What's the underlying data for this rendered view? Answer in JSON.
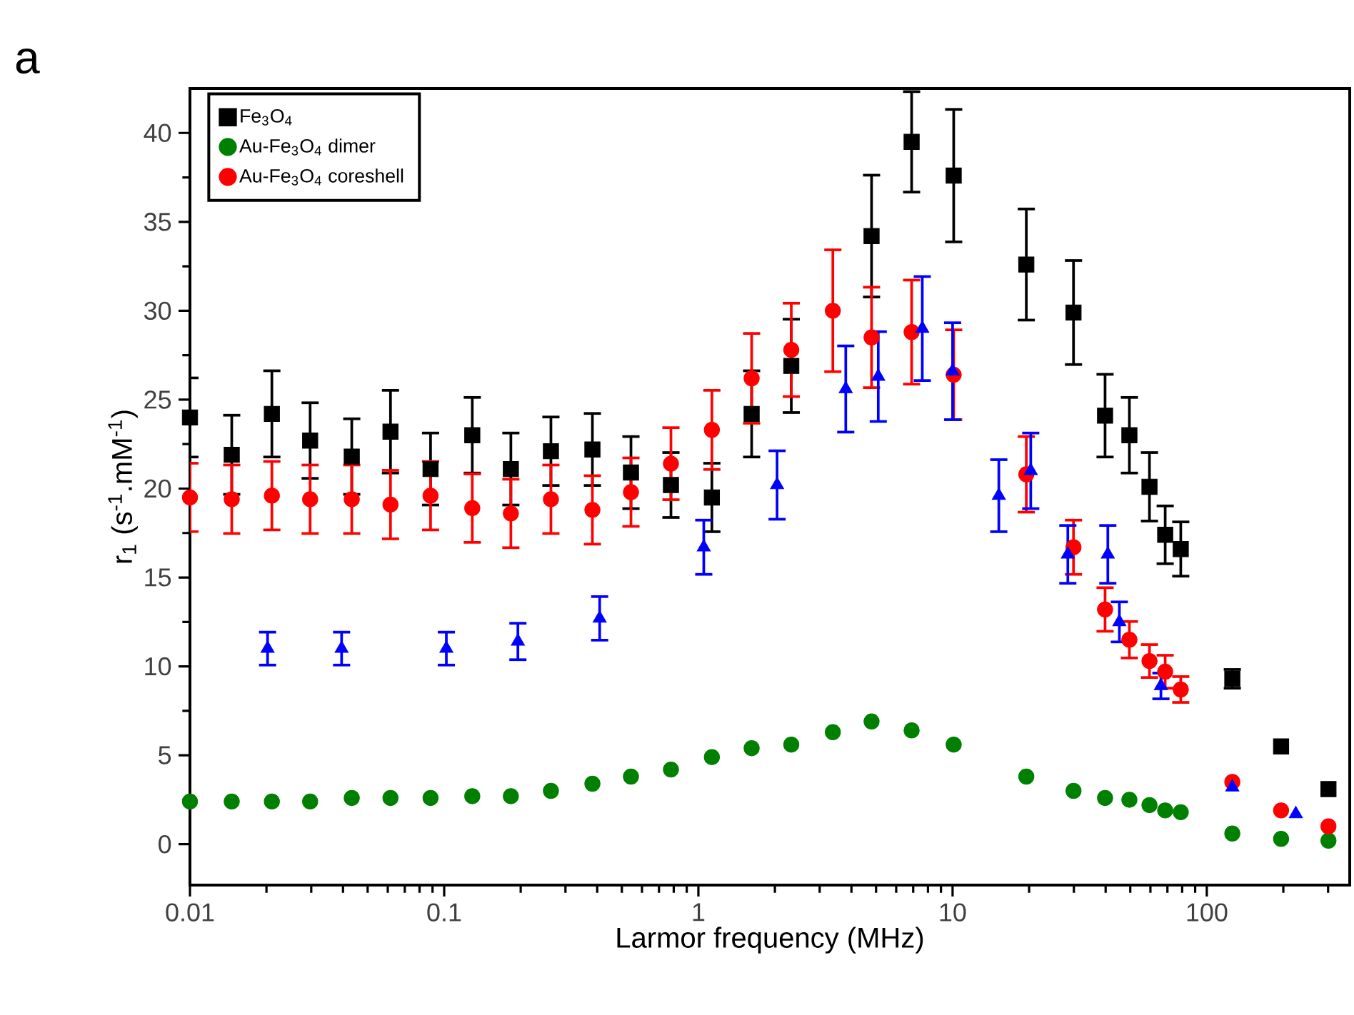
{
  "chart_data": {
    "type": "scatter",
    "xlabel": "Larmor frequency (MHz)",
    "ylabel": "r$_{1}$ (s$^{-1}$.mM$^{-1}$)",
    "annotations": [
      "a"
    ],
    "log": "x",
    "xlim": [
      0.01,
      365
    ],
    "xticks": [
      0.01,
      0.1,
      1,
      10,
      100
    ],
    "ylim": [
      -2.3,
      42.5
    ],
    "yticks": [
      0,
      5,
      10,
      15,
      20,
      25,
      30,
      35,
      40
    ],
    "grid": false,
    "legend": "top left",
    "series": [
      {
        "name": "Fe$_{3}$O$_{4}$",
        "color": "#000000",
        "marker": "square",
        "x": [
          0.01,
          0.0146,
          0.021,
          0.0297,
          0.0433,
          0.0615,
          0.0884,
          0.129,
          0.183,
          0.263,
          0.383,
          0.543,
          0.78,
          1.13,
          1.62,
          2.32,
          3.38,
          4.8,
          6.9,
          10.1,
          19.5,
          29.9,
          39.8,
          49.6,
          59.5,
          68.6,
          79,
          126,
          196,
          301
        ],
        "values": [
          24.0,
          21.9,
          24.2,
          22.7,
          21.8,
          23.2,
          21.1,
          23.0,
          21.1,
          22.1,
          22.2,
          20.9,
          20.2,
          19.5,
          24.2,
          26.9,
          null,
          34.2,
          39.5,
          37.6,
          32.6,
          29.9,
          24.1,
          23.0,
          20.1,
          17.4,
          16.6,
          9.3,
          5.5,
          3.1
        ],
        "errors": [
          2.3,
          2.3,
          2.5,
          2.2,
          2.2,
          2.4,
          2.1,
          2.2,
          2.1,
          2.0,
          2.1,
          2.1,
          1.9,
          2.0,
          2.5,
          2.7,
          null,
          3.5,
          2.9,
          3.8,
          3.2,
          3.0,
          2.4,
          2.2,
          2.0,
          1.7,
          1.6,
          0.6,
          null,
          null
        ]
      },
      {
        "name": "Au-Fe$_{3}$O$_{4}$ dimer",
        "color": "#008000",
        "marker": "circle",
        "x": [
          0.01,
          0.0146,
          0.021,
          0.0297,
          0.0433,
          0.0615,
          0.0884,
          0.129,
          0.183,
          0.263,
          0.383,
          0.543,
          0.78,
          1.13,
          1.62,
          2.32,
          3.38,
          4.8,
          6.9,
          10.1,
          19.5,
          29.9,
          39.8,
          49.6,
          59.5,
          68.6,
          79,
          126,
          196,
          301
        ],
        "values": [
          2.4,
          2.4,
          2.4,
          2.4,
          2.6,
          2.6,
          2.6,
          2.7,
          2.7,
          3.0,
          3.4,
          3.8,
          4.2,
          4.9,
          5.4,
          5.6,
          6.3,
          6.9,
          6.4,
          5.6,
          3.8,
          3.0,
          2.6,
          2.5,
          2.2,
          1.9,
          1.8,
          0.6,
          0.3,
          0.2
        ]
      },
      {
        "name": "Au-Fe$_{3}$O$_{4}$ coreshell",
        "color": "#ff0000",
        "marker": "circle",
        "x": [
          0.01,
          0.0146,
          0.021,
          0.0297,
          0.0433,
          0.0615,
          0.0884,
          0.129,
          0.183,
          0.263,
          0.383,
          0.543,
          0.78,
          1.13,
          1.62,
          2.32,
          3.38,
          4.8,
          6.9,
          10.1,
          19.5,
          29.9,
          39.8,
          49.6,
          59.5,
          68.6,
          79,
          126,
          196,
          301
        ],
        "values": [
          19.5,
          19.4,
          19.6,
          19.4,
          19.4,
          19.1,
          19.6,
          18.9,
          18.6,
          19.4,
          18.8,
          19.8,
          21.4,
          23.3,
          26.2,
          27.8,
          30.0,
          28.5,
          28.8,
          26.4,
          20.8,
          16.7,
          13.2,
          11.5,
          10.3,
          9.7,
          8.7,
          3.5,
          1.9,
          1.0
        ],
        "errors": [
          2.0,
          2.0,
          2.0,
          2.0,
          2.0,
          2.0,
          2.0,
          2.0,
          2.0,
          2.0,
          2.0,
          2.0,
          2.1,
          2.3,
          2.6,
          2.7,
          3.5,
          2.9,
          3.0,
          2.6,
          2.2,
          1.6,
          1.3,
          1.1,
          1.0,
          1.0,
          0.8,
          null,
          null,
          null
        ]
      },
      {
        "color": "#0000ff",
        "marker": "triangle",
        "x": [
          0.0202,
          0.0395,
          0.102,
          0.195,
          0.409,
          1.05,
          2.04,
          3.8,
          5.1,
          7.6,
          10,
          15.2,
          20.3,
          28.4,
          40.8,
          45.3,
          66,
          126,
          224
        ],
        "values": [
          11.0,
          11.0,
          11.0,
          11.4,
          12.7,
          16.7,
          20.2,
          25.6,
          26.3,
          29.0,
          26.6,
          19.6,
          21.0,
          16.3,
          16.3,
          12.5,
          8.9,
          3.2,
          1.7
        ],
        "errors": [
          1.0,
          1.0,
          1.0,
          1.1,
          1.3,
          1.6,
          2.0,
          2.5,
          2.6,
          3.0,
          2.8,
          2.1,
          2.2,
          1.7,
          1.7,
          1.2,
          0.8,
          null,
          null
        ]
      }
    ]
  }
}
